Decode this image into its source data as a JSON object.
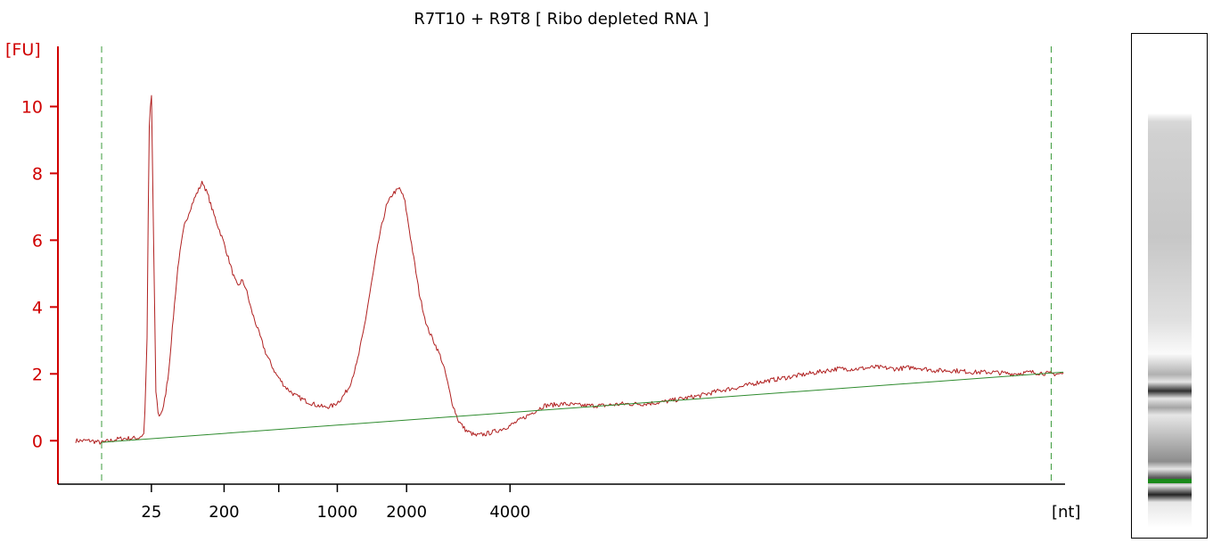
{
  "chart_data": {
    "type": "line",
    "title": "R7T10 + R9T8  [ Ribo depleted RNA ]",
    "ylabel": "[FU]",
    "xlabel": "[nt]",
    "ylim": [
      -1.3,
      11.8
    ],
    "yticks": [
      0,
      2,
      4,
      6,
      8,
      10
    ],
    "xticks": [
      {
        "label": "25",
        "pos": 0.0775
      },
      {
        "label": "200",
        "pos": 0.152
      },
      {
        "label": "",
        "pos": 0.208
      },
      {
        "label": "1000",
        "pos": 0.268
      },
      {
        "label": "2000",
        "pos": 0.339
      },
      {
        "label": "4000",
        "pos": 0.445
      }
    ],
    "x_range": [
      0,
      1
    ],
    "markers_pos": [
      0.0265,
      0.9995
    ],
    "series": [
      {
        "color": "#b02020",
        "points": [
          [
            0.0,
            0.0
          ],
          [
            0.015,
            0.0
          ],
          [
            0.026,
            -0.06
          ],
          [
            0.045,
            0.06
          ],
          [
            0.064,
            0.08
          ],
          [
            0.07,
            0.2
          ],
          [
            0.073,
            2.8
          ],
          [
            0.075,
            9.2
          ],
          [
            0.0775,
            10.5
          ],
          [
            0.0795,
            6.5
          ],
          [
            0.082,
            1.5
          ],
          [
            0.085,
            0.7
          ],
          [
            0.09,
            1.0
          ],
          [
            0.095,
            2.0
          ],
          [
            0.1,
            3.7
          ],
          [
            0.105,
            5.3
          ],
          [
            0.111,
            6.4
          ],
          [
            0.118,
            7.0
          ],
          [
            0.124,
            7.4
          ],
          [
            0.13,
            7.75
          ],
          [
            0.136,
            7.3
          ],
          [
            0.14,
            6.9
          ],
          [
            0.146,
            6.4
          ],
          [
            0.152,
            5.9
          ],
          [
            0.158,
            5.3
          ],
          [
            0.162,
            4.9
          ],
          [
            0.166,
            4.6
          ],
          [
            0.17,
            4.8
          ],
          [
            0.174,
            4.6
          ],
          [
            0.18,
            3.9
          ],
          [
            0.188,
            3.2
          ],
          [
            0.195,
            2.6
          ],
          [
            0.205,
            2.0
          ],
          [
            0.215,
            1.6
          ],
          [
            0.225,
            1.35
          ],
          [
            0.235,
            1.2
          ],
          [
            0.245,
            1.08
          ],
          [
            0.255,
            1.0
          ],
          [
            0.264,
            1.05
          ],
          [
            0.272,
            1.25
          ],
          [
            0.28,
            1.6
          ],
          [
            0.288,
            2.3
          ],
          [
            0.295,
            3.3
          ],
          [
            0.303,
            4.7
          ],
          [
            0.311,
            6.1
          ],
          [
            0.318,
            7.0
          ],
          [
            0.325,
            7.4
          ],
          [
            0.332,
            7.55
          ],
          [
            0.337,
            7.2
          ],
          [
            0.344,
            5.9
          ],
          [
            0.352,
            4.4
          ],
          [
            0.36,
            3.4
          ],
          [
            0.368,
            2.9
          ],
          [
            0.374,
            2.5
          ],
          [
            0.379,
            2.0
          ],
          [
            0.385,
            1.2
          ],
          [
            0.392,
            0.6
          ],
          [
            0.4,
            0.3
          ],
          [
            0.41,
            0.15
          ],
          [
            0.42,
            0.2
          ],
          [
            0.432,
            0.3
          ],
          [
            0.445,
            0.45
          ],
          [
            0.46,
            0.7
          ],
          [
            0.48,
            1.05
          ],
          [
            0.5,
            1.1
          ],
          [
            0.52,
            1.05
          ],
          [
            0.54,
            1.05
          ],
          [
            0.56,
            1.1
          ],
          [
            0.58,
            1.1
          ],
          [
            0.6,
            1.15
          ],
          [
            0.62,
            1.25
          ],
          [
            0.64,
            1.35
          ],
          [
            0.66,
            1.5
          ],
          [
            0.68,
            1.6
          ],
          [
            0.7,
            1.75
          ],
          [
            0.72,
            1.85
          ],
          [
            0.74,
            1.95
          ],
          [
            0.76,
            2.05
          ],
          [
            0.78,
            2.15
          ],
          [
            0.8,
            2.15
          ],
          [
            0.82,
            2.2
          ],
          [
            0.84,
            2.15
          ],
          [
            0.86,
            2.2
          ],
          [
            0.88,
            2.1
          ],
          [
            0.9,
            2.1
          ],
          [
            0.92,
            2.05
          ],
          [
            0.94,
            2.05
          ],
          [
            0.96,
            2.0
          ],
          [
            0.98,
            2.05
          ],
          [
            1.0,
            2.0
          ],
          [
            1.012,
            2.0
          ]
        ]
      },
      {
        "color": "#2e8b2e",
        "points": [
          [
            0.0265,
            -0.05
          ],
          [
            1.012,
            2.05
          ]
        ]
      }
    ]
  },
  "gel": {
    "bands": [
      {
        "pos": 0.63,
        "dark": 0.25
      },
      {
        "pos": 0.67,
        "dark": 0.8
      },
      {
        "pos": 0.71,
        "dark": 0.3
      },
      {
        "pos": 0.84,
        "dark": 0.4
      },
      {
        "pos": 0.88,
        "dark": 0.65
      },
      {
        "pos": 0.92,
        "dark": 0.85
      }
    ],
    "marker_color": "#1a8a1a"
  }
}
